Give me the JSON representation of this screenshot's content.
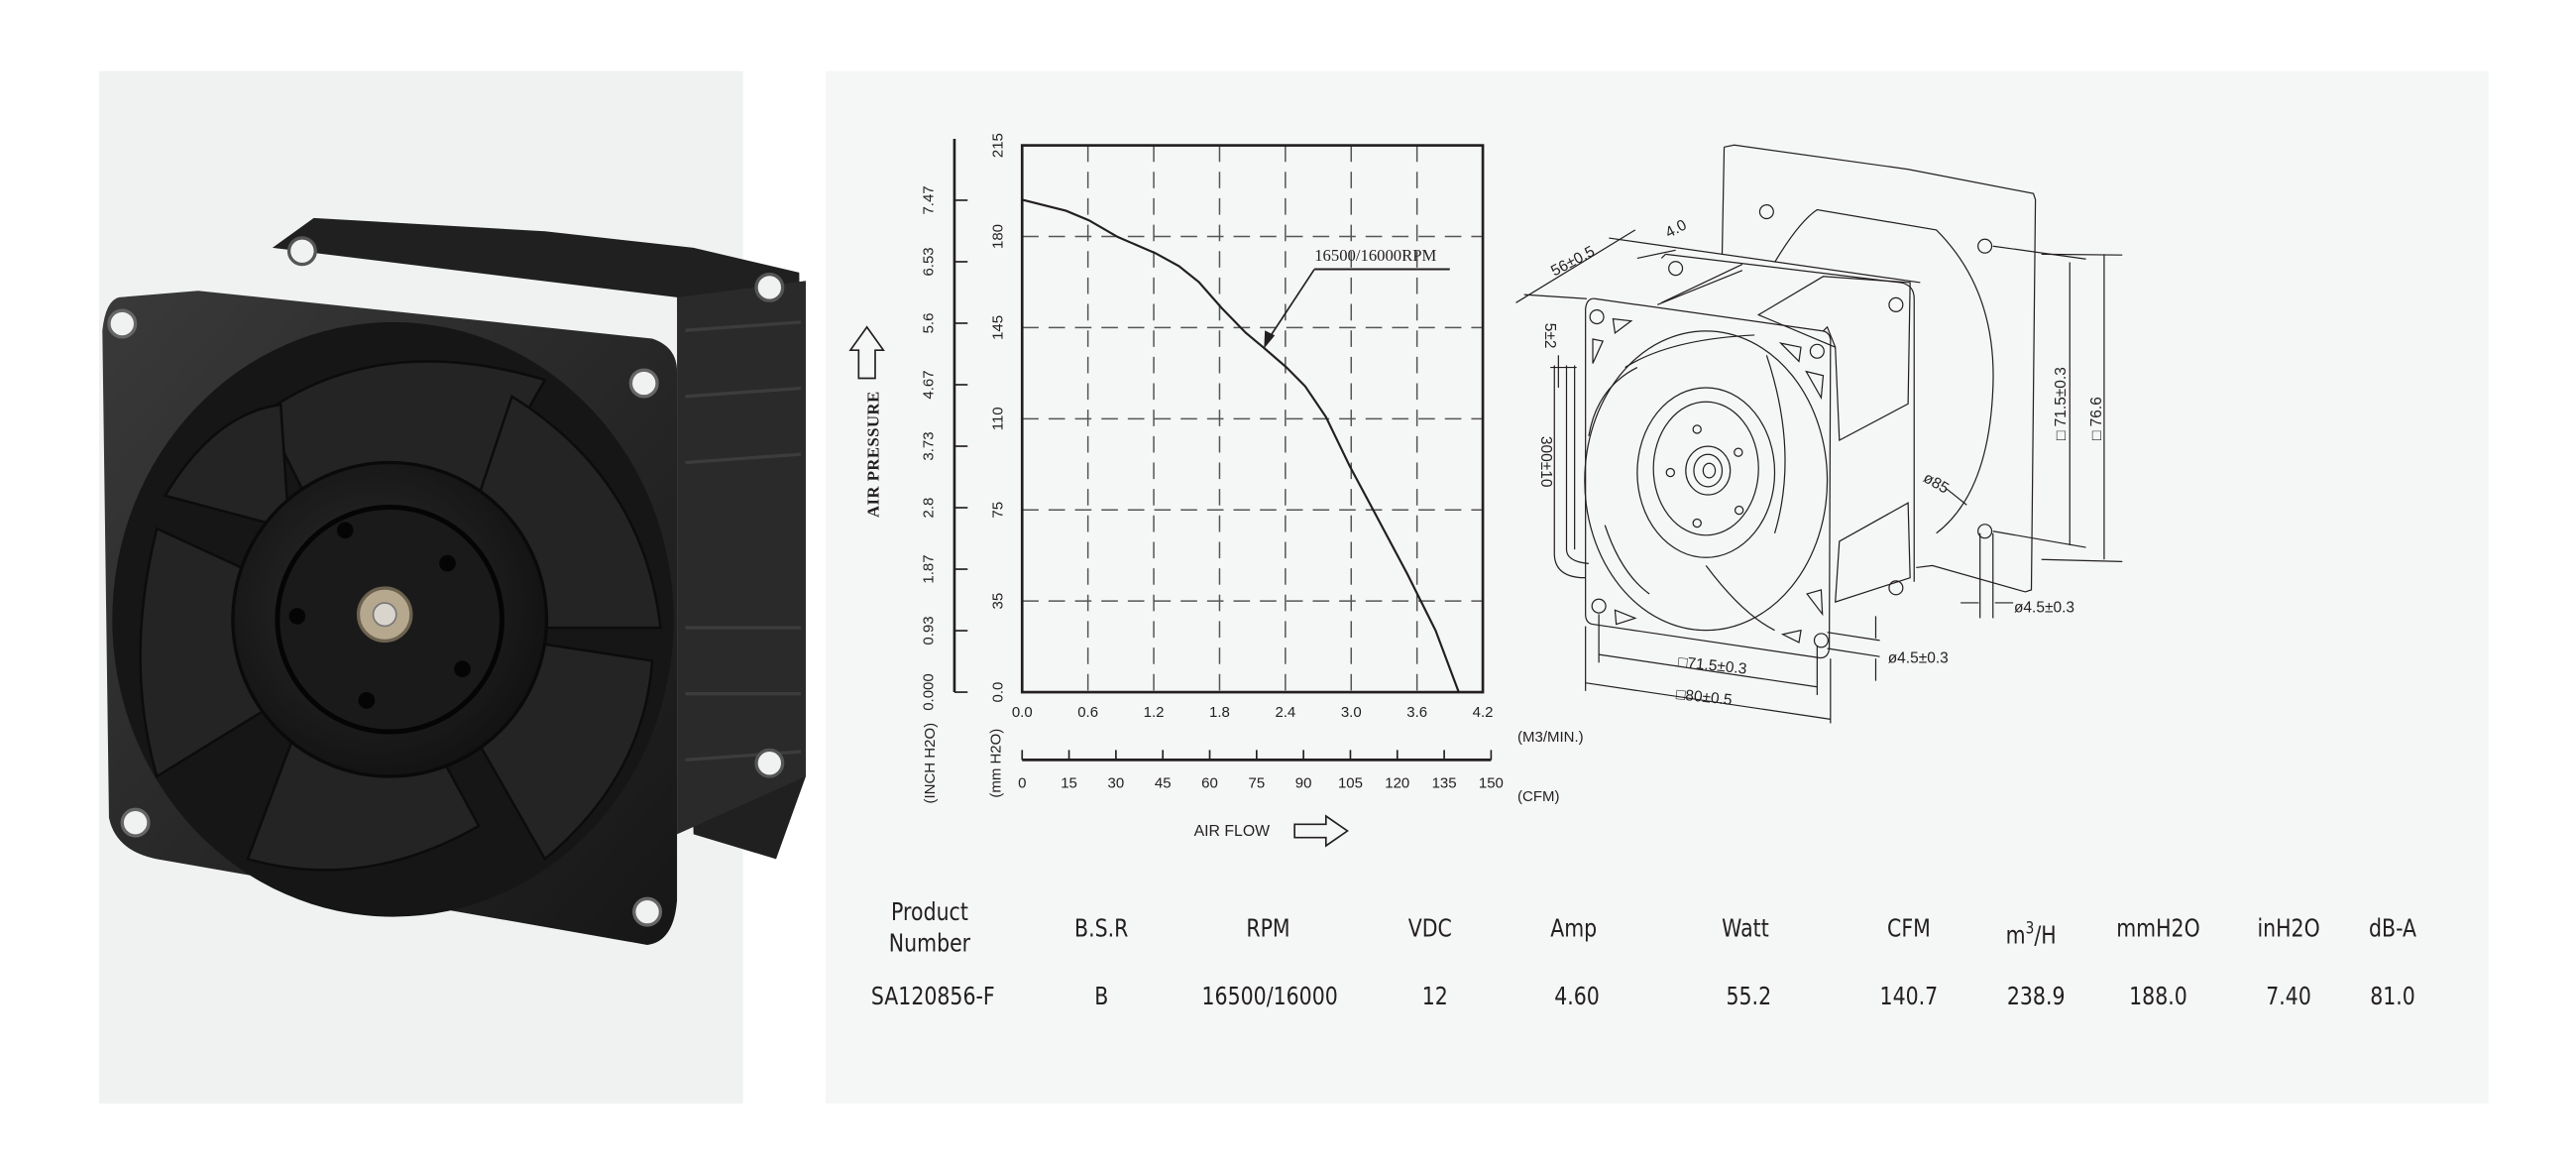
{
  "chart_data": {
    "type": "line",
    "xlabel": "AIR FLOW",
    "ylabel": "AIR PRESSURE",
    "x_unit": "(M3/MIN.)",
    "x2_unit": "(CFM)",
    "y_unit": "(mm H2O)",
    "y2_unit": "(INCH H2O)",
    "xlim": [
      0,
      4.2
    ],
    "ylim": [
      0,
      215
    ],
    "x_ticks": [
      "0.0",
      "0.6",
      "1.2",
      "1.8",
      "2.4",
      "3.0",
      "3.6",
      "4.2"
    ],
    "x2_ticks": [
      "0",
      "15",
      "30",
      "45",
      "60",
      "75",
      "90",
      "105",
      "120",
      "135",
      "150"
    ],
    "y_ticks": [
      "0.0",
      "35",
      "75",
      "110",
      "145",
      "180",
      "215"
    ],
    "y2_ticks": [
      "0.000",
      "0.93",
      "1.87",
      "2.8",
      "3.73",
      "4.67",
      "5.6",
      "6.53",
      "7.47"
    ],
    "grid": true,
    "annotation": "16500/16000RPM",
    "series": [
      {
        "x": [
          0,
          0.4,
          0.61,
          0.87,
          1.22,
          1.43,
          1.61,
          1.82,
          2.04,
          2.21,
          2.41,
          2.58,
          2.77,
          2.99,
          3.21,
          3.51,
          3.77,
          3.98
        ],
        "y": [
          193.6,
          189.3,
          185.5,
          179,
          172.5,
          167.5,
          161.3,
          151,
          141.3,
          135.2,
          127.7,
          120.3,
          108.2,
          88.6,
          70.9,
          46.6,
          24.2,
          0
        ]
      }
    ]
  },
  "drawing": {
    "dims": [
      "56±0.5",
      "4.0",
      "5±2",
      "300±10",
      "□71.5±0.3",
      "□80±0.5",
      "ø4.5±0.3",
      "ø4.5±0.3",
      "ø85",
      "□ 71.5±0.3",
      "□ 76.6"
    ]
  },
  "table": {
    "headers": [
      "Product",
      "Number",
      "B.S.R",
      "RPM",
      "VDC",
      "Amp",
      "Watt",
      "CFM",
      "m",
      "3",
      "/H",
      "mmH2O",
      "inH2O",
      "dB-A"
    ],
    "row": [
      "SA120856-F",
      "B",
      "16500/16000",
      "12",
      "4.60",
      "55.2",
      "140.7",
      "238.9",
      "188.0",
      "7.40",
      "81.0"
    ]
  },
  "colors": {
    "ink": "#231f20",
    "panel": "#f5f7f6",
    "photo_panel": "#f0f1f1",
    "fan": "#1e1e1e"
  }
}
